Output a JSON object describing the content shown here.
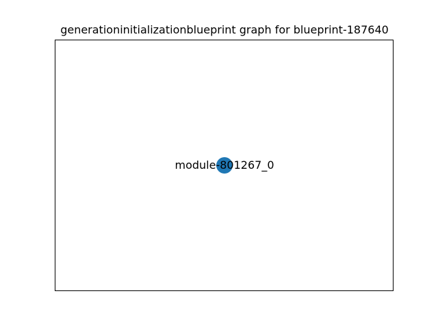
{
  "graph": {
    "title": "generationinitializationblueprint graph for blueprint-187640",
    "nodes": [
      {
        "label": "module-801267_0",
        "color": "#1f77b4"
      }
    ],
    "edges": []
  }
}
